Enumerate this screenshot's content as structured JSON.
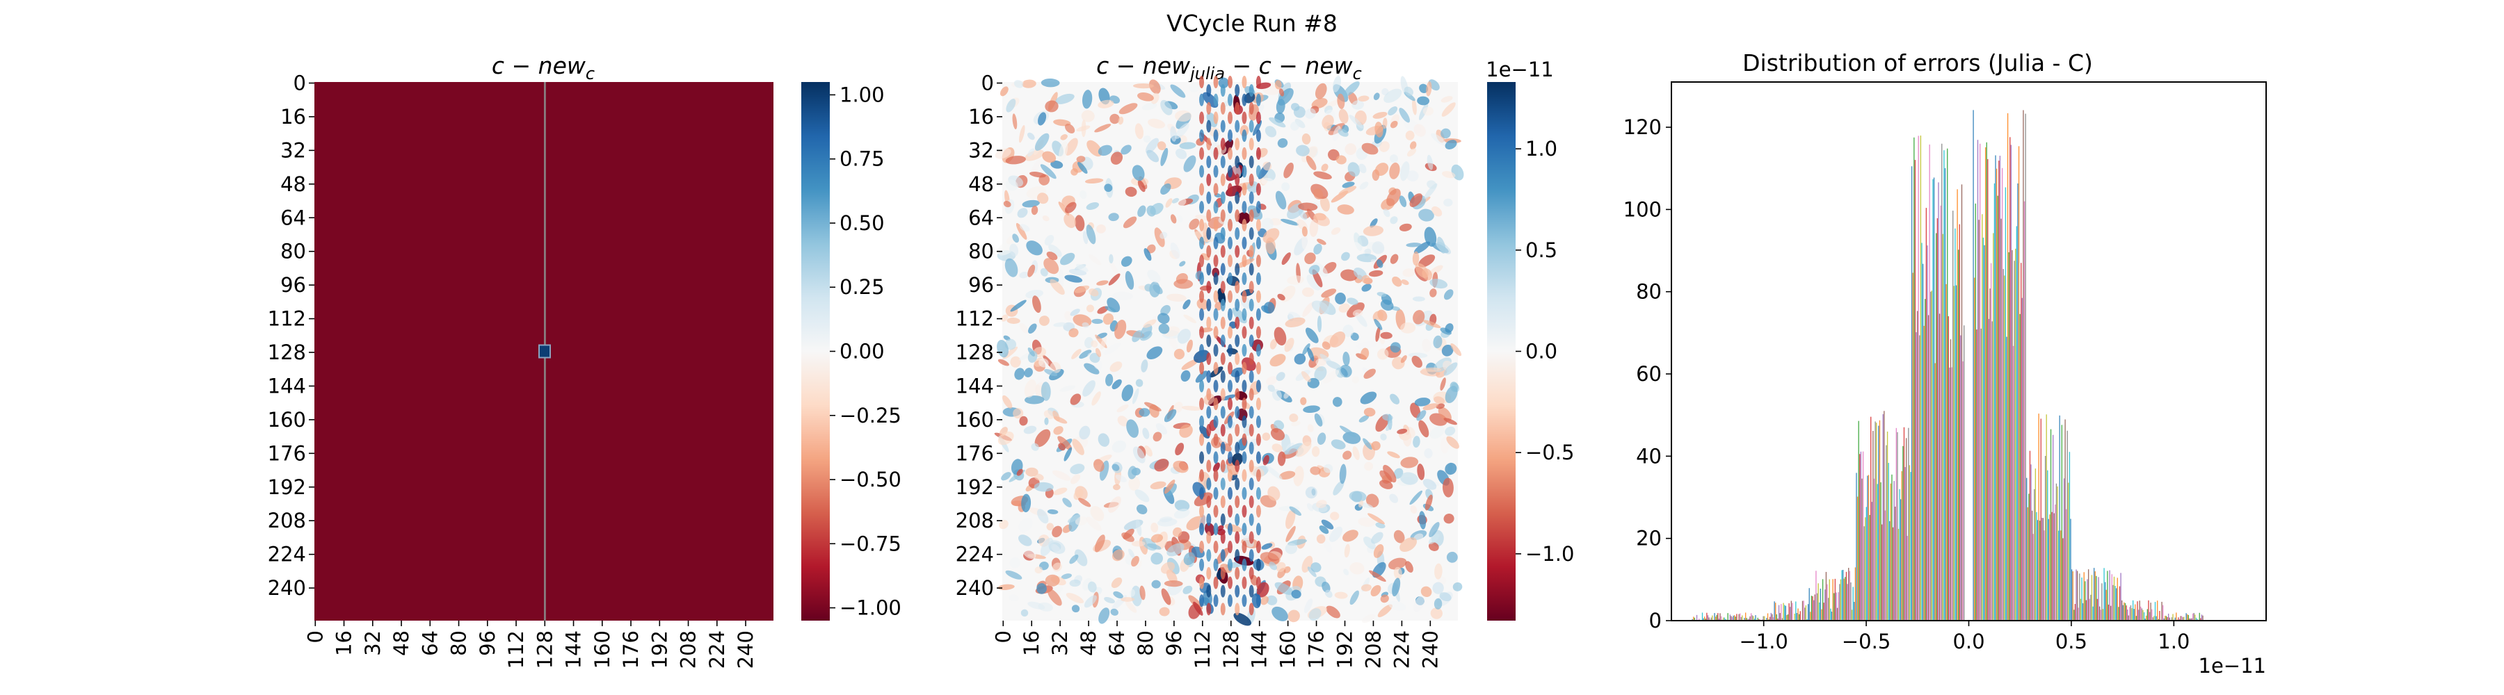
{
  "figure": {
    "suptitle": "VCycle Run #8"
  },
  "chart_data": [
    {
      "type": "heatmap",
      "title_main": "c − new",
      "title_sub": "c",
      "grid_size": 256,
      "description_values": {
        "background_value": -1.0,
        "center_column_index": 128,
        "center_column_value": 0.0,
        "center_cell": [
          128,
          128
        ],
        "center_cell_value": 1.0
      },
      "yticklabels": [
        "0",
        "16",
        "32",
        "48",
        "64",
        "80",
        "96",
        "112",
        "128",
        "144",
        "160",
        "176",
        "192",
        "208",
        "224",
        "240"
      ],
      "xticklabels": [
        "0",
        "16",
        "32",
        "48",
        "64",
        "80",
        "96",
        "112",
        "128",
        "144",
        "160",
        "176",
        "192",
        "208",
        "224",
        "240"
      ],
      "colorbar": {
        "colormap": "RdBu",
        "vmin": -1.05,
        "vmax": 1.05,
        "ticks": [
          1.0,
          0.75,
          0.5,
          0.25,
          0.0,
          -0.25,
          -0.5,
          -0.75,
          -1.0
        ],
        "ticklabels": [
          "1.00",
          "0.75",
          "0.50",
          "0.25",
          "0.00",
          "−0.25",
          "−0.50",
          "−0.75",
          "−1.00"
        ]
      }
    },
    {
      "type": "heatmap",
      "title_parts": [
        "c − new",
        "julia",
        " − c − new",
        "c"
      ],
      "grid_size": 256,
      "value_scale": "1e-11",
      "yticklabels": [
        "0",
        "16",
        "32",
        "48",
        "64",
        "80",
        "96",
        "112",
        "128",
        "144",
        "160",
        "176",
        "192",
        "208",
        "224",
        "240"
      ],
      "xticklabels": [
        "0",
        "16",
        "32",
        "48",
        "64",
        "80",
        "96",
        "112",
        "128",
        "144",
        "160",
        "176",
        "192",
        "208",
        "224",
        "240"
      ],
      "colorbar": {
        "colormap": "RdBu",
        "vmin": -1.33,
        "vmax": 1.33,
        "multiplier": "1e−11",
        "ticks": [
          1.0,
          0.5,
          0.0,
          -0.5,
          -1.0
        ],
        "ticklabels": [
          "1.0",
          "0.5",
          "0.0",
          "−0.5",
          "−1.0"
        ]
      }
    },
    {
      "type": "bar",
      "title": "Distribution of errors (Julia - C)",
      "xlim": [
        -1.45,
        1.45
      ],
      "ylim": [
        0,
        131
      ],
      "x_multiplier": "1e−11",
      "xticks": [
        -1.0,
        -0.5,
        0.0,
        0.5,
        1.0
      ],
      "xticklabels": [
        "−1.0",
        "−0.5",
        "0.0",
        "0.5",
        "1.0"
      ],
      "yticks": [
        0,
        20,
        40,
        60,
        80,
        100,
        120
      ],
      "yticklabels": [
        "0",
        "20",
        "40",
        "60",
        "80",
        "100",
        "120"
      ],
      "bin_groups": [
        {
          "x_start": -1.35,
          "x_end": -1.15,
          "min": 0,
          "max": 2
        },
        {
          "x_start": -1.15,
          "x_end": -0.95,
          "min": 0,
          "max": 2
        },
        {
          "x_start": -0.95,
          "x_end": -0.78,
          "min": 0,
          "max": 5
        },
        {
          "x_start": -0.78,
          "x_end": -0.55,
          "min": 2,
          "max": 13
        },
        {
          "x_start": -0.55,
          "x_end": -0.28,
          "min": 20,
          "max": 52
        },
        {
          "x_start": -0.28,
          "x_end": -0.02,
          "min": 60,
          "max": 118
        },
        {
          "x_start": 0.02,
          "x_end": 0.28,
          "min": 65,
          "max": 125
        },
        {
          "x_start": 0.28,
          "x_end": 0.5,
          "min": 20,
          "max": 52
        },
        {
          "x_start": 0.5,
          "x_end": 0.75,
          "min": 2,
          "max": 13
        },
        {
          "x_start": 0.75,
          "x_end": 0.95,
          "min": 0,
          "max": 5
        },
        {
          "x_start": 0.95,
          "x_end": 1.15,
          "min": 0,
          "max": 2
        }
      ],
      "series_colors": [
        "#1f77b4",
        "#ff7f0e",
        "#2ca02c",
        "#d62728",
        "#9467bd",
        "#8c564b",
        "#e377c2",
        "#7f7f7f",
        "#bcbd22",
        "#17becf"
      ]
    }
  ]
}
